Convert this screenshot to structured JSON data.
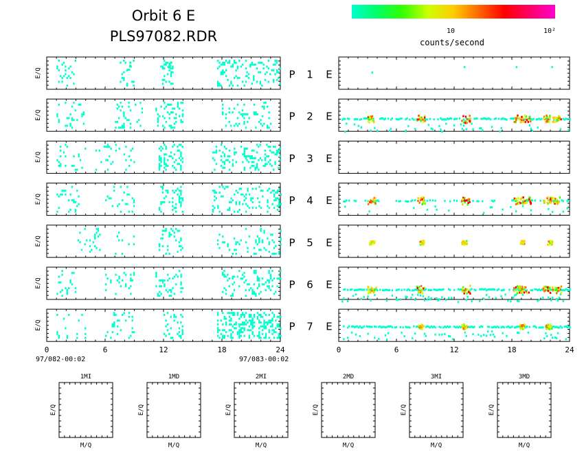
{
  "header": {
    "title_line1": "Orbit 6 E",
    "title_line2": "PLS97082.RDR"
  },
  "colorbar": {
    "colors": [
      "#00ffcc",
      "#00ff66",
      "#33ff00",
      "#ccff00",
      "#ffcc00",
      "#ff6600",
      "#ff0000",
      "#ff0066",
      "#ff00cc"
    ],
    "tick_labels": [
      "10",
      "10²"
    ],
    "label": "counts/second"
  },
  "chart_data": {
    "type": "heatmap",
    "x_ticks": [
      "0",
      "6",
      "12",
      "18",
      "24"
    ],
    "xlim": [
      0,
      24
    ],
    "y_label": "E/Q",
    "time_start": "97/082-00:02",
    "time_end": "97/083-00:02",
    "rows": [
      {
        "p_label": "P",
        "num": "1",
        "e_label": "E",
        "left_bands": [
          [
            1.0,
            3.0,
            0.18
          ],
          [
            7.5,
            9.0,
            0.3
          ],
          [
            11.5,
            13.0,
            0.45
          ],
          [
            17.5,
            20.5,
            0.35
          ],
          [
            20.5,
            24.0,
            0.3
          ]
        ],
        "left_hot": [
          [
            8.4,
            0.78
          ],
          [
            12.6,
            0.72
          ]
        ],
        "right_level": 0.0,
        "right_bands": [],
        "right_hot": [],
        "right_sparse": [
          [
            3.4,
            0.55
          ],
          [
            13.0,
            0.72
          ],
          [
            18.4,
            0.72
          ],
          [
            22.1,
            0.72
          ]
        ]
      },
      {
        "p_label": "P",
        "num": "2",
        "e_label": "E",
        "left_bands": [
          [
            1.0,
            4.0,
            0.18
          ],
          [
            7.0,
            10.0,
            0.22
          ],
          [
            11.0,
            14.0,
            0.35
          ],
          [
            18.0,
            23.0,
            0.3
          ]
        ],
        "left_hot": [],
        "right_level": 0.38,
        "right_bands": [
          [
            0.3,
            24.0,
            0.7
          ]
        ],
        "right_hot": [
          [
            3.4,
            1.0
          ],
          [
            8.5,
            1.0
          ],
          [
            13.1,
            1.2
          ],
          [
            18.6,
            1.1
          ],
          [
            19.4,
            1.1
          ],
          [
            21.5,
            1.0
          ],
          [
            22.6,
            1.1
          ]
        ],
        "right_sparse": []
      },
      {
        "p_label": "P",
        "num": "3",
        "e_label": "E",
        "left_bands": [
          [
            1.0,
            4.0,
            0.2
          ],
          [
            5.0,
            9.0,
            0.18
          ],
          [
            11.5,
            14.0,
            0.45
          ],
          [
            17.0,
            20.5,
            0.35
          ],
          [
            20.5,
            24.0,
            0.3
          ]
        ],
        "left_hot": [],
        "right_level": 0.0,
        "right_bands": [],
        "right_hot": [],
        "right_sparse": []
      },
      {
        "p_label": "P",
        "num": "4",
        "e_label": "E",
        "left_bands": [
          [
            1.0,
            3.5,
            0.22
          ],
          [
            6.0,
            9.0,
            0.2
          ],
          [
            11.5,
            14.0,
            0.4
          ],
          [
            17.0,
            24.0,
            0.3
          ]
        ],
        "left_hot": [],
        "right_level": 0.45,
        "right_bands": [
          [
            0.3,
            24.0,
            0.35
          ]
        ],
        "right_hot": [
          [
            3.4,
            1.0
          ],
          [
            8.5,
            1.0
          ],
          [
            13.1,
            1.1
          ],
          [
            18.6,
            1.0
          ],
          [
            19.5,
            1.0
          ],
          [
            21.6,
            1.0
          ],
          [
            22.5,
            1.0
          ]
        ],
        "right_sparse": []
      },
      {
        "p_label": "P",
        "num": "5",
        "e_label": "E",
        "left_bands": [
          [
            3.0,
            6.0,
            0.15
          ],
          [
            7.0,
            9.0,
            0.12
          ],
          [
            11.5,
            14.0,
            0.3
          ],
          [
            17.5,
            24.0,
            0.22
          ]
        ],
        "left_hot": [],
        "right_level": 0.45,
        "right_bands": [],
        "right_hot": [
          [
            3.4,
            0.6
          ],
          [
            8.6,
            0.6
          ],
          [
            13.0,
            0.6
          ],
          [
            19.0,
            0.6
          ],
          [
            21.9,
            0.6
          ]
        ],
        "right_sparse": []
      },
      {
        "p_label": "P",
        "num": "6",
        "e_label": "E",
        "left_bands": [
          [
            1.0,
            3.0,
            0.2
          ],
          [
            6.0,
            9.0,
            0.2
          ],
          [
            11.0,
            14.0,
            0.3
          ],
          [
            18.0,
            24.0,
            0.32
          ]
        ],
        "left_hot": [],
        "right_level": 0.3,
        "right_bands": [
          [
            0.3,
            24.0,
            0.8
          ]
        ],
        "right_hot": [
          [
            3.4,
            1.0
          ],
          [
            8.5,
            1.1
          ],
          [
            13.1,
            1.2
          ],
          [
            18.6,
            1.1
          ],
          [
            19.3,
            1.1
          ],
          [
            21.6,
            1.0
          ],
          [
            22.6,
            1.1
          ]
        ],
        "right_sparse": []
      },
      {
        "p_label": "P",
        "num": "7",
        "e_label": "E",
        "left_bands": [
          [
            1.0,
            4.0,
            0.15
          ],
          [
            6.0,
            9.0,
            0.2
          ],
          [
            12.0,
            14.0,
            0.45
          ],
          [
            17.5,
            24.0,
            0.55
          ]
        ],
        "left_hot": [],
        "right_level": 0.45,
        "right_bands": [
          [
            0.3,
            24.0,
            0.75
          ]
        ],
        "right_hot": [
          [
            8.5,
            0.7
          ],
          [
            13.0,
            0.7
          ],
          [
            19.0,
            0.7
          ],
          [
            21.8,
            0.7
          ]
        ],
        "right_sparse": []
      }
    ]
  },
  "mass_panels": [
    {
      "title": "1MI",
      "xlabel": "M/Q",
      "ylabel": "E/Q"
    },
    {
      "title": "1MD",
      "xlabel": "M/Q",
      "ylabel": "E/Q"
    },
    {
      "title": "2MI",
      "xlabel": "M/Q",
      "ylabel": "E/Q"
    },
    {
      "title": "2MD",
      "xlabel": "M/Q",
      "ylabel": "E/Q"
    },
    {
      "title": "3MI",
      "xlabel": "M/Q",
      "ylabel": "E/Q"
    },
    {
      "title": "3MD",
      "xlabel": "M/Q",
      "ylabel": "E/Q"
    }
  ]
}
